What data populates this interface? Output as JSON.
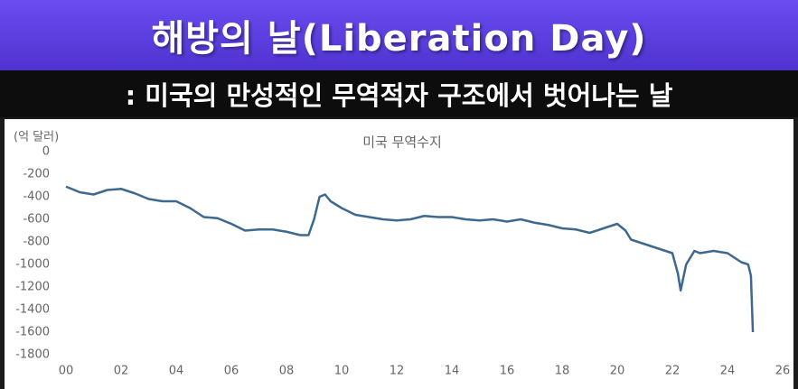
{
  "header": {
    "title": "해방의 날(Liberation Day)",
    "subtitle": ": 미국의 만성적인 무역적자 구조에서 벗어나는 날"
  },
  "chart_data": {
    "type": "line",
    "title": "미국 무역수지",
    "y_unit_label": "(억 달러)",
    "x": [
      2000.0,
      2000.5,
      2001.0,
      2001.5,
      2002.0,
      2002.5,
      2003.0,
      2003.5,
      2004.0,
      2004.5,
      2005.0,
      2005.5,
      2006.0,
      2006.5,
      2007.0,
      2007.5,
      2008.0,
      2008.5,
      2008.8,
      2009.0,
      2009.2,
      2009.4,
      2009.6,
      2010.0,
      2010.5,
      2011.0,
      2011.5,
      2012.0,
      2012.5,
      2013.0,
      2013.5,
      2014.0,
      2014.5,
      2015.0,
      2015.5,
      2016.0,
      2016.5,
      2017.0,
      2017.5,
      2018.0,
      2018.5,
      2019.0,
      2019.5,
      2020.0,
      2020.3,
      2020.5,
      2021.0,
      2021.5,
      2022.0,
      2022.2,
      2022.3,
      2022.5,
      2022.8,
      2023.0,
      2023.5,
      2024.0,
      2024.5,
      2024.75,
      2024.85,
      2024.92
    ],
    "series": [
      {
        "name": "미국 무역수지",
        "color": "#3d6990",
        "values": [
          -310,
          -360,
          -380,
          -340,
          -330,
          -370,
          -420,
          -440,
          -440,
          -500,
          -580,
          -590,
          -640,
          -700,
          -690,
          -690,
          -710,
          -740,
          -740,
          -600,
          -400,
          -380,
          -440,
          -500,
          -560,
          -580,
          -600,
          -610,
          -600,
          -570,
          -580,
          -580,
          -600,
          -610,
          -600,
          -620,
          -600,
          -630,
          -650,
          -680,
          -690,
          -720,
          -680,
          -640,
          -700,
          -780,
          -820,
          -860,
          -900,
          -1080,
          -1230,
          -1000,
          -880,
          -900,
          -880,
          -900,
          -980,
          -1000,
          -1100,
          -1600
        ]
      }
    ],
    "xlim": [
      2000,
      2026
    ],
    "xticks": [
      {
        "value": 2000,
        "label": "00"
      },
      {
        "value": 2002,
        "label": "02"
      },
      {
        "value": 2004,
        "label": "04"
      },
      {
        "value": 2006,
        "label": "06"
      },
      {
        "value": 2008,
        "label": "08"
      },
      {
        "value": 2010,
        "label": "10"
      },
      {
        "value": 2012,
        "label": "12"
      },
      {
        "value": 2014,
        "label": "14"
      },
      {
        "value": 2016,
        "label": "16"
      },
      {
        "value": 2018,
        "label": "18"
      },
      {
        "value": 2020,
        "label": "20"
      },
      {
        "value": 2022,
        "label": "22"
      },
      {
        "value": 2024,
        "label": "24"
      },
      {
        "value": 2026,
        "label": "26"
      }
    ],
    "ylim": [
      -1800,
      0
    ],
    "yticks": [
      -1800,
      -1600,
      -1400,
      -1200,
      -1000,
      -800,
      -600,
      -400,
      -200,
      0
    ],
    "grid": false
  }
}
